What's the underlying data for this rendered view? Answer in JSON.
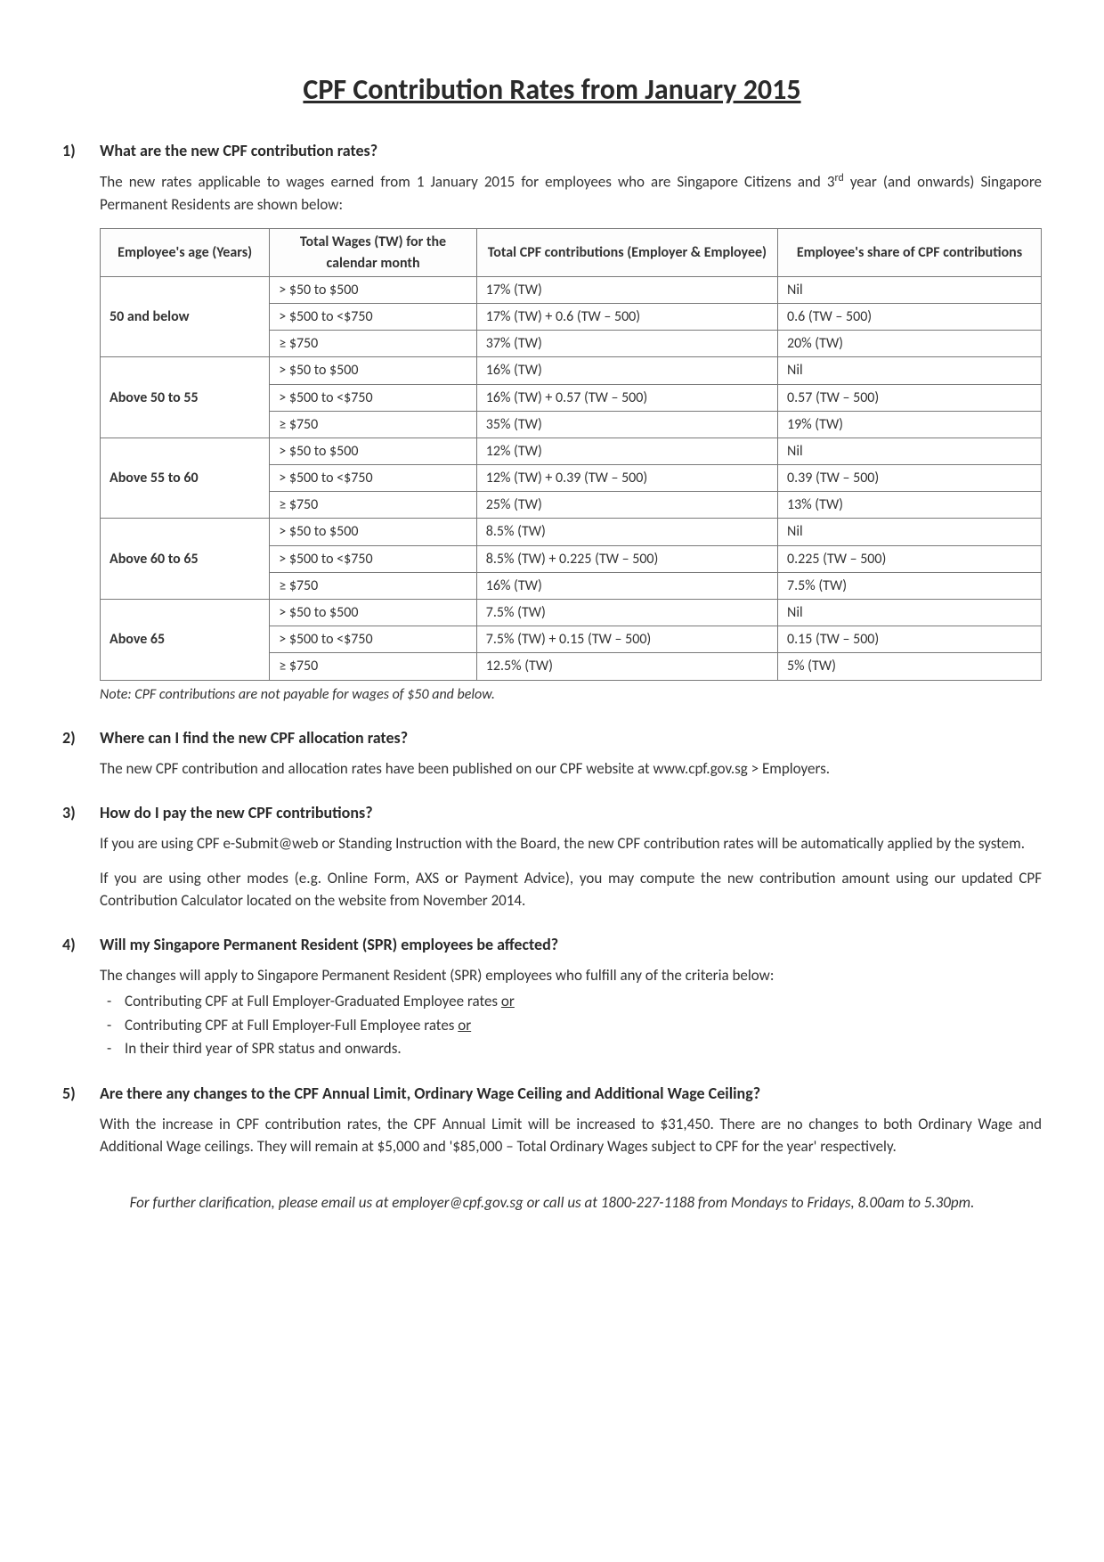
{
  "title": "CPF Contribution Rates from January 2015",
  "colors": {
    "text": "#333333",
    "heading": "#2a2a2a",
    "border": "#7a7a7a",
    "background": "#ffffff"
  },
  "typography": {
    "title_fontsize": 32,
    "heading_fontsize": 18,
    "body_fontsize": 17,
    "table_fontsize": 16,
    "font_family": "Calibri, Arial, sans-serif"
  },
  "sections": {
    "s1": {
      "num": "1)",
      "heading": "What are the new CPF contribution rates?",
      "intro_a": "The new rates applicable to wages earned from 1 January 2015 for employees who are Singapore Citizens and 3",
      "intro_sup": "rd",
      "intro_b": " year (and onwards) Singapore Permanent Residents are shown below:",
      "table": {
        "columns": [
          "Employee's age (Years)",
          "Total Wages (TW) for the calendar month",
          "Total CPF contributions (Employer & Employee)",
          "Employee's share of CPF contributions"
        ],
        "col_widths_pct": [
          18,
          22,
          32,
          28
        ],
        "groups": [
          {
            "age": "50 and below",
            "rows": [
              {
                "wage": "> $50 to $500",
                "total": "17% (TW)",
                "emp": "Nil"
              },
              {
                "wage": "> $500 to <$750",
                "total": "17% (TW) + 0.6 (TW – 500)",
                "emp": "0.6 (TW – 500)"
              },
              {
                "wage": "≥ $750",
                "total": "37% (TW)",
                "emp": "20% (TW)"
              }
            ]
          },
          {
            "age": "Above 50 to 55",
            "rows": [
              {
                "wage": "> $50 to $500",
                "total": "16% (TW)",
                "emp": "Nil"
              },
              {
                "wage": "> $500 to <$750",
                "total": "16% (TW) + 0.57 (TW – 500)",
                "emp": "0.57 (TW – 500)"
              },
              {
                "wage": "≥ $750",
                "total": "35% (TW)",
                "emp": "19% (TW)"
              }
            ]
          },
          {
            "age": "Above 55 to 60",
            "rows": [
              {
                "wage": "> $50 to $500",
                "total": "12% (TW)",
                "emp": "Nil"
              },
              {
                "wage": "> $500 to <$750",
                "total": "12% (TW) + 0.39 (TW – 500)",
                "emp": "0.39 (TW – 500)"
              },
              {
                "wage": "≥ $750",
                "total": "25% (TW)",
                "emp": "13% (TW)"
              }
            ]
          },
          {
            "age": "Above 60 to 65",
            "rows": [
              {
                "wage": "> $50 to $500",
                "total": "8.5% (TW)",
                "emp": "Nil"
              },
              {
                "wage": "> $500 to <$750",
                "total": "8.5% (TW) + 0.225 (TW – 500)",
                "emp": "0.225 (TW – 500)"
              },
              {
                "wage": "≥ $750",
                "total": "16% (TW)",
                "emp": "7.5% (TW)"
              }
            ]
          },
          {
            "age": "Above 65",
            "rows": [
              {
                "wage": "> $50 to $500",
                "total": "7.5% (TW)",
                "emp": "Nil"
              },
              {
                "wage": "> $500 to <$750",
                "total": "7.5% (TW) + 0.15 (TW – 500)",
                "emp": "0.15 (TW – 500)"
              },
              {
                "wage": "≥ $750",
                "total": "12.5% (TW)",
                "emp": "5% (TW)"
              }
            ]
          }
        ]
      },
      "note": "Note: CPF contributions are not payable for wages of $50 and below."
    },
    "s2": {
      "num": "2)",
      "heading": "Where can I find the new CPF allocation rates?",
      "body": "The new CPF contribution and allocation rates have been published on our CPF website at www.cpf.gov.sg > Employers."
    },
    "s3": {
      "num": "3)",
      "heading": "How do I pay the new CPF contributions?",
      "p1": "If you are using CPF e-Submit@web or Standing Instruction with the Board, the new CPF contribution rates will be automatically applied by the system.",
      "p2": "If you are using other modes (e.g. Online Form, AXS or Payment Advice), you may compute the new contribution amount using our updated CPF Contribution Calculator located on the website from November 2014."
    },
    "s4": {
      "num": "4)",
      "heading": "Will my Singapore Permanent Resident (SPR) employees be affected?",
      "intro": "The changes will apply to Singapore Permanent Resident (SPR) employees who fulfill any of the criteria below:",
      "bullets": [
        {
          "text": "Contributing CPF at Full Employer-Graduated Employee rates ",
          "tail_u": "or"
        },
        {
          "text": "Contributing CPF at Full Employer-Full Employee rates ",
          "tail_u": "or"
        },
        {
          "text": "In their third year of SPR status and onwards.",
          "tail_u": ""
        }
      ]
    },
    "s5": {
      "num": "5)",
      "heading": "Are there any changes to the CPF Annual Limit, Ordinary Wage Ceiling and Additional Wage Ceiling?",
      "body": "With the increase in CPF contribution rates, the CPF Annual Limit will be increased to $31,450. There are no changes to both Ordinary Wage and Additional Wage ceilings. They will remain at $5,000 and '$85,000 – Total Ordinary Wages subject to CPF for the year' respectively."
    }
  },
  "footer": "For further clarification, please email us at employer@cpf.gov.sg or call us at 1800-227-1188 from Mondays to Fridays, 8.00am to 5.30pm."
}
